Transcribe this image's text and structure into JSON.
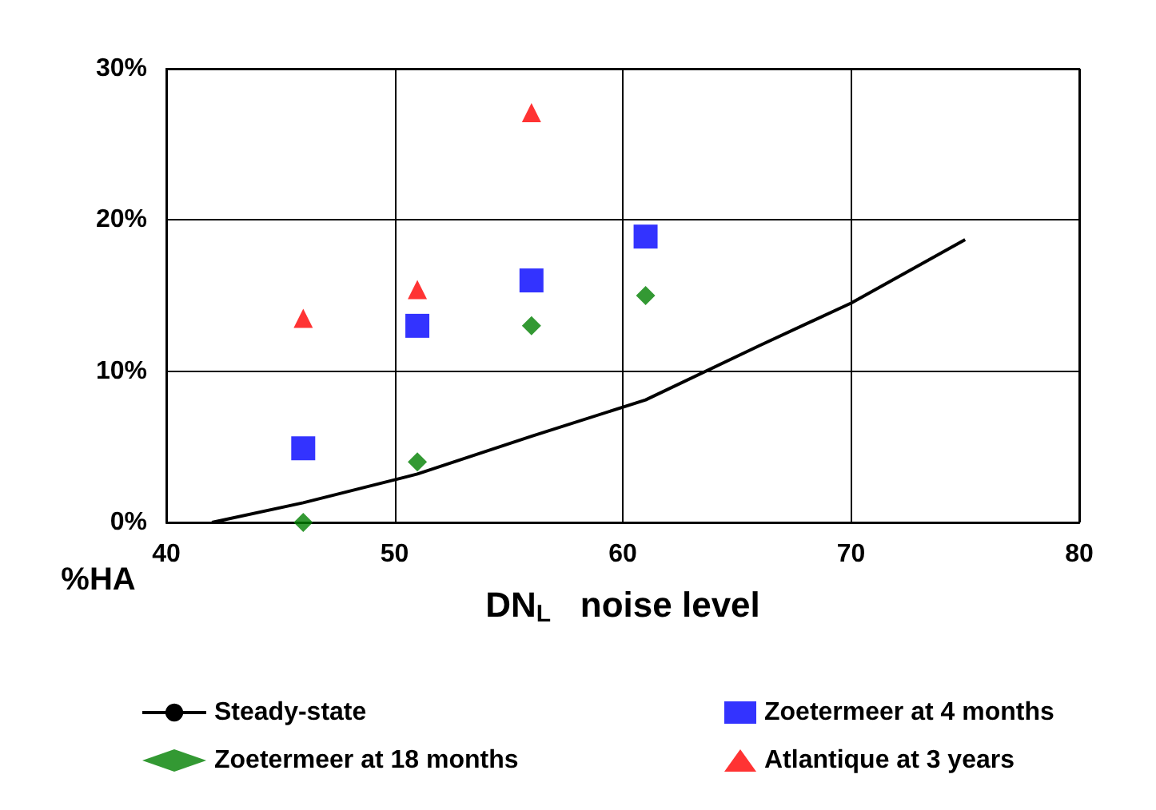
{
  "chart_data": {
    "type": "scatter",
    "xlabel": "DN$_{L}$   noise level",
    "ylabel": "%HA",
    "xlim": [
      40,
      80
    ],
    "xticks": [
      40,
      50,
      60,
      70,
      80
    ],
    "ylim": [
      0,
      30
    ],
    "yticks": [
      {
        "value": 0,
        "label": "0%"
      },
      {
        "value": 10,
        "label": "10%"
      },
      {
        "value": 20,
        "label": "20%"
      },
      {
        "value": 30,
        "label": "30%"
      }
    ],
    "grid": true,
    "legend": "bottom",
    "series": [
      {
        "name": "Steady-state",
        "type": "line",
        "color": "#000000",
        "marker": "none",
        "x": [
          42,
          46,
          51,
          56,
          61,
          66,
          70,
          75
        ],
        "values": [
          0,
          1.3,
          3.2,
          5.7,
          8.1,
          11.7,
          14.5,
          18.7
        ]
      },
      {
        "name": "Zoetermeer at 4 months",
        "color": "#0000ff",
        "marker": "square",
        "x": [
          46,
          51,
          56,
          61
        ],
        "values": [
          4.9,
          13,
          16,
          18.9
        ]
      },
      {
        "name": "Zoetermeer at 18 months",
        "color": "#008000",
        "marker": "diamond",
        "x": [
          46,
          51,
          56,
          61
        ],
        "values": [
          0,
          4,
          13,
          15
        ]
      },
      {
        "name": "Atlantique at 3 years",
        "color": "#ff0000",
        "marker": "triangle",
        "x": [
          46,
          51,
          56
        ],
        "values": [
          13.5,
          15.4,
          27.1
        ]
      }
    ]
  }
}
